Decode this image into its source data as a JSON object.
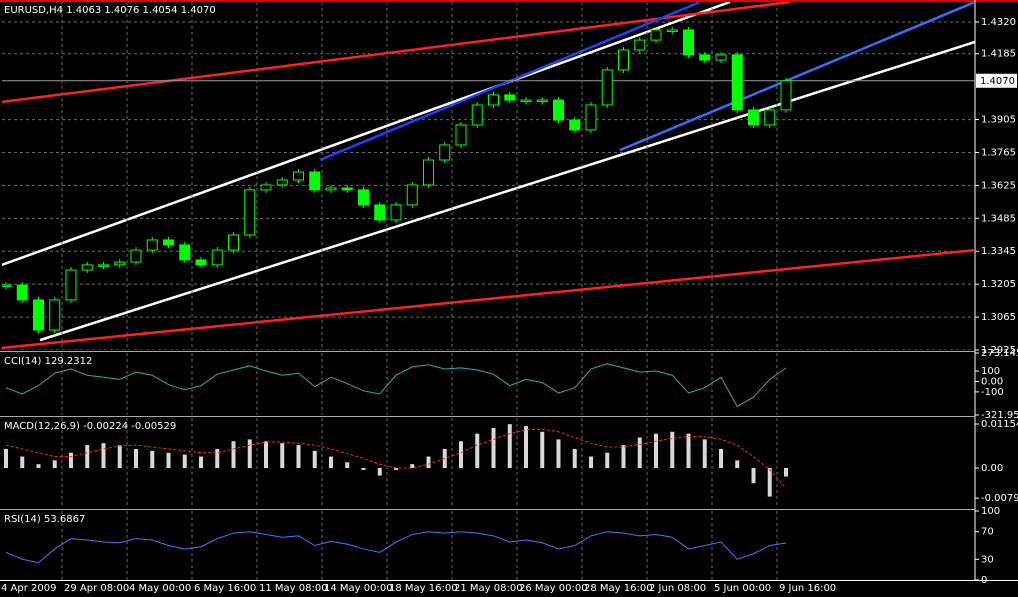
{
  "chart_data": [
    {
      "type": "candlestick",
      "title": "EURUSD,H4  1.4063 1.4076 1.4054 1.4070",
      "categories": [
        "4 Apr 2009",
        null,
        null,
        null,
        "29 Apr 08:00",
        null,
        null,
        null,
        "4 May 00:00",
        null,
        null,
        null,
        "6 May 16:00",
        null,
        null,
        null,
        "11 May 08:00",
        null,
        null,
        null,
        "14 May 00:00",
        null,
        null,
        null,
        "18 May 16:00",
        null,
        null,
        null,
        "21 May 08:00",
        null,
        null,
        null,
        "26 May 00:00",
        null,
        null,
        null,
        "28 May 16:00",
        null,
        null,
        null,
        "2 Jun 08:00",
        null,
        null,
        null,
        "5 Jun 00:00",
        null,
        null,
        null,
        "9 Jun 16:00"
      ],
      "series": [
        {
          "color": "#00ff00",
          "values": [
            1.3201,
            1.3138,
            1.301,
            1.3138,
            1.3265,
            1.3287,
            1.3287,
            1.3299,
            1.335,
            1.3393,
            1.3372,
            1.3308,
            1.3287,
            1.335,
            1.3414,
            1.3606,
            1.3627,
            1.3648,
            1.3682,
            1.3606,
            1.3614,
            1.3606,
            1.3542,
            1.3478,
            1.3542,
            1.3627,
            1.3733,
            1.3797,
            1.3882,
            1.3967,
            1.401,
            1.3988,
            1.3988,
            1.3988,
            1.3903,
            1.3861,
            1.3967,
            1.4116,
            1.4201,
            1.4243,
            1.4286,
            1.4286,
            1.418,
            1.4158,
            1.418,
            1.3946,
            1.3882,
            1.3946,
            1.407
          ]
        }
      ],
      "trendlines": [
        {
          "color": "#ffffff",
          "x": [
            -0.25,
            44.55
          ],
          "values": [
            1.3287,
            1.4405
          ]
        },
        {
          "color": "#ffffff",
          "x": [
            2.09,
            59.63
          ],
          "values": [
            1.2967,
            1.4235
          ]
        },
        {
          "color": "#ff2020",
          "x": [
            -0.25,
            48.25
          ],
          "values": [
            1.398,
            1.4405
          ]
        },
        {
          "color": "#ff2020",
          "x": [
            -0.25,
            59.63
          ],
          "values": [
            1.2934,
            1.335
          ]
        },
        {
          "color": "#2040ff",
          "x": [
            19.32,
            42.71
          ],
          "values": [
            1.3733,
            1.4405
          ]
        },
        {
          "color": "#3a6cff",
          "x": [
            37.78,
            59.63
          ],
          "values": [
            1.3775,
            1.4405
          ]
        }
      ],
      "ylim": [
        1.2925,
        1.4405
      ],
      "yticks": [
        {
          "value": 1.432,
          "label": "1.4320"
        },
        1.4185,
        1.3905,
        1.3765,
        1.3625,
        1.3485,
        1.3345,
        1.3205,
        1.3065,
        1.2925
      ],
      "last_price": {
        "value": 1.407,
        "label": "1.4070"
      },
      "grid": true
    },
    {
      "type": "line",
      "title": "CCI(14) 129.2312",
      "series": [
        {
          "color": "#20b2aa",
          "values": [
            -60,
            -120,
            -40,
            80,
            120,
            60,
            40,
            20,
            90,
            60,
            -30,
            -80,
            -40,
            70,
            110,
            150,
            100,
            60,
            80,
            -50,
            40,
            -20,
            -90,
            -120,
            60,
            140,
            160,
            120,
            130,
            110,
            70,
            -40,
            20,
            -10,
            -110,
            -60,
            120,
            170,
            130,
            90,
            100,
            60,
            -110,
            -60,
            40,
            -240,
            -150,
            20,
            129.2312
          ]
        }
      ],
      "ylim": [
        -321.953,
        273.1457
      ],
      "yticks": [
        273.1457,
        100,
        {
          "value": 0,
          "label": "0.00"
        },
        -100,
        -321.953
      ],
      "grid": false
    },
    {
      "type": "bar",
      "title": "MACD(12,26,9) -0.00224 -0.00529",
      "series": [
        {
          "color": "#d8d8d8",
          "values": [
            0.005,
            0.003,
            0.001,
            0.002,
            0.004,
            0.006,
            0.0065,
            0.006,
            0.005,
            0.0045,
            0.004,
            0.0035,
            0.003,
            0.005,
            0.007,
            0.0075,
            0.007,
            0.0065,
            0.006,
            0.0045,
            0.003,
            0.0015,
            -0.0005,
            -0.002,
            -0.0005,
            0.001,
            0.003,
            0.005,
            0.007,
            0.009,
            0.0105,
            0.0115,
            0.011,
            0.0095,
            0.0075,
            0.005,
            0.003,
            0.004,
            0.006,
            0.008,
            0.009,
            0.0095,
            0.009,
            0.0075,
            0.005,
            0.002,
            -0.004,
            -0.0075,
            -0.00224
          ]
        },
        {
          "type": "line",
          "color": "#ff2020",
          "values": [
            0.006,
            0.005,
            0.004,
            0.003,
            0.003,
            0.004,
            0.005,
            0.0058,
            0.006,
            0.0055,
            0.005,
            0.0045,
            0.004,
            0.004,
            0.005,
            0.006,
            0.0068,
            0.0068,
            0.0065,
            0.006,
            0.005,
            0.0038,
            0.0025,
            0.001,
            0,
            0,
            0.001,
            0.0025,
            0.004,
            0.006,
            0.0075,
            0.009,
            0.01,
            0.0102,
            0.0095,
            0.008,
            0.0065,
            0.0055,
            0.0055,
            0.0062,
            0.007,
            0.0078,
            0.0083,
            0.0082,
            0.0075,
            0.006,
            0.003,
            -0.0005,
            -0.00529
          ]
        }
      ],
      "ylim": [
        -0.01049,
        0.01311
      ],
      "yticks": [
        0.01154,
        {
          "value": 0,
          "label": "0.00"
        },
        -0.00791
      ],
      "grid": false
    },
    {
      "type": "line",
      "title": "RSI(14) 53.6867",
      "series": [
        {
          "color": "#3a7bff",
          "values": [
            40,
            30,
            25,
            45,
            60,
            58,
            55,
            54,
            60,
            58,
            50,
            45,
            48,
            60,
            68,
            70,
            66,
            62,
            64,
            50,
            56,
            52,
            45,
            40,
            55,
            66,
            70,
            68,
            70,
            68,
            64,
            55,
            58,
            54,
            45,
            50,
            64,
            70,
            68,
            64,
            66,
            62,
            45,
            50,
            55,
            30,
            38,
            50,
            53.6867
          ]
        }
      ],
      "ylim": [
        0,
        100
      ],
      "yticks": [
        100,
        70,
        30,
        0
      ],
      "grid": false
    }
  ]
}
